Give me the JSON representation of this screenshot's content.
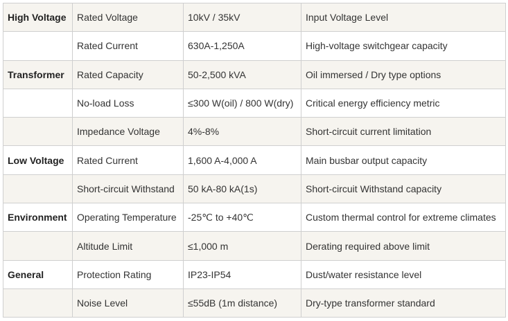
{
  "table": {
    "rows": [
      {
        "group": "High Voltage",
        "parameter": "Rated Voltage",
        "value": "10kV / 35kV",
        "note": "Input Voltage Level"
      },
      {
        "parameter": "Rated Current",
        "value": "630A-1,250A",
        "note": "High-voltage switchgear capacity"
      },
      {
        "group": "Transformer",
        "parameter": "Rated Capacity",
        "value": "50-2,500 kVA",
        "note": "Oil immersed / Dry type options"
      },
      {
        "parameter": "No-load Loss",
        "value": "≤300 W(oil) / 800 W(dry)",
        "note": "Critical energy efficiency metric"
      },
      {
        "parameter": "Impedance Voltage",
        "value": "4%-8%",
        "note": "Short-circuit current limitation"
      },
      {
        "group": "Low Voltage",
        "parameter": "Rated Current",
        "value": "1,600 A-4,000 A",
        "note": "Main busbar output capacity"
      },
      {
        "parameter": "Short-circuit Withstand",
        "value": "50 kA-80 kA(1s)",
        "note": "Short-circuit Withstand capacity"
      },
      {
        "group": "Environment",
        "parameter": "Operating Temperature",
        "value": "-25℃ to +40℃",
        "note": "Custom thermal control for extreme climates"
      },
      {
        "parameter": "Altitude Limit",
        "value": "≤1,000 m",
        "note": "Derating required above limit"
      },
      {
        "group": "General",
        "parameter": "Protection Rating",
        "value": "IP23-IP54",
        "note": "Dust/water resistance level"
      },
      {
        "parameter": "Noise Level",
        "value": "≤55dB (1m distance)",
        "note": "Dry-type transformer standard"
      }
    ]
  }
}
